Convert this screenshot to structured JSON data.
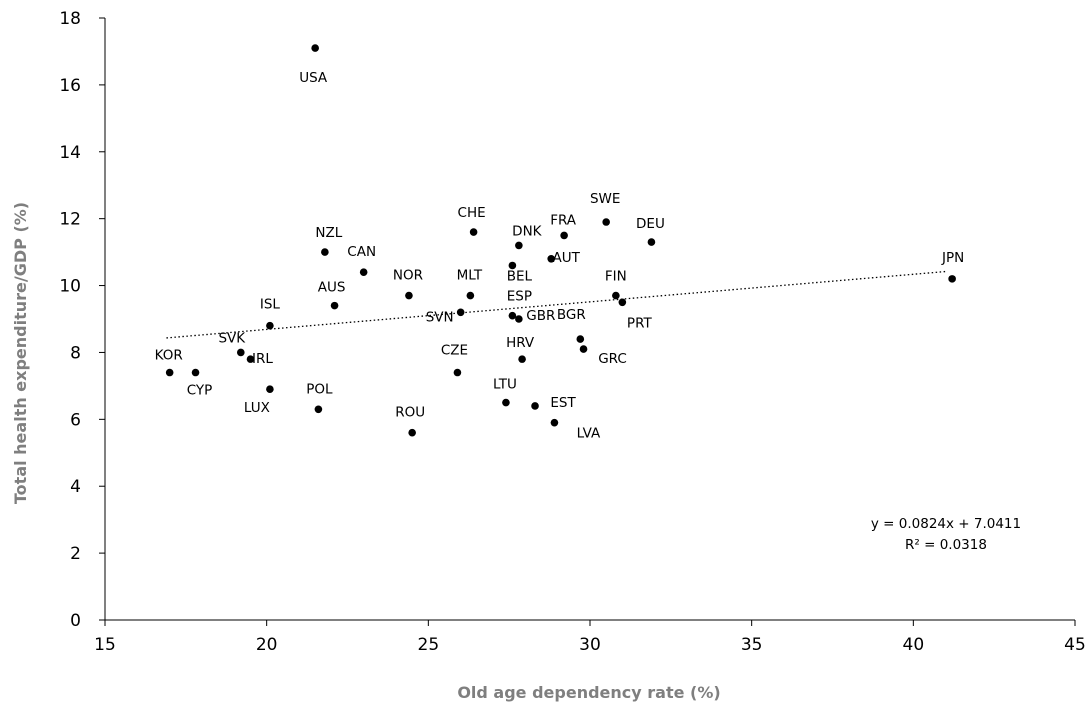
{
  "chart_data": {
    "type": "scatter",
    "xlabel": "Old age dependency rate (%)",
    "ylabel": "Total health expenditure/GDP  (%)",
    "xlim": [
      15,
      45
    ],
    "ylim": [
      0,
      18
    ],
    "xticks": [
      15,
      20,
      25,
      30,
      35,
      40,
      45
    ],
    "yticks": [
      0,
      2,
      4,
      6,
      8,
      10,
      12,
      14,
      16,
      18
    ],
    "grid": false,
    "marker_color": "#000000",
    "points": [
      {
        "label": "USA",
        "x": 21.5,
        "y": 17.1
      },
      {
        "label": "NZL",
        "x": 21.8,
        "y": 11.0
      },
      {
        "label": "CAN",
        "x": 23.0,
        "y": 10.4
      },
      {
        "label": "AUS",
        "x": 22.1,
        "y": 9.4
      },
      {
        "label": "ISL",
        "x": 20.1,
        "y": 8.8
      },
      {
        "label": "SVK",
        "x": 19.2,
        "y": 8.0
      },
      {
        "label": "IRL",
        "x": 19.5,
        "y": 7.8
      },
      {
        "label": "KOR",
        "x": 17.0,
        "y": 7.4
      },
      {
        "label": "CYP",
        "x": 17.8,
        "y": 7.4
      },
      {
        "label": "LUX",
        "x": 20.1,
        "y": 6.9
      },
      {
        "label": "POL",
        "x": 21.6,
        "y": 6.3
      },
      {
        "label": "NOR",
        "x": 24.4,
        "y": 9.7
      },
      {
        "label": "ROU",
        "x": 24.5,
        "y": 5.6
      },
      {
        "label": "CHE",
        "x": 26.4,
        "y": 11.6
      },
      {
        "label": "MLT",
        "x": 26.3,
        "y": 9.7
      },
      {
        "label": "SVN",
        "x": 26.0,
        "y": 9.2
      },
      {
        "label": "CZE",
        "x": 25.9,
        "y": 7.4
      },
      {
        "label": "DNK",
        "x": 27.8,
        "y": 11.2
      },
      {
        "label": "BEL",
        "x": 27.6,
        "y": 10.6
      },
      {
        "label": "AUT",
        "x": 28.8,
        "y": 10.8
      },
      {
        "label": "ESP",
        "x": 27.6,
        "y": 9.1
      },
      {
        "label": "GBR",
        "x": 27.8,
        "y": 9.0
      },
      {
        "label": "HRV",
        "x": 27.9,
        "y": 7.8
      },
      {
        "label": "LTU",
        "x": 27.4,
        "y": 6.5
      },
      {
        "label": "EST",
        "x": 28.3,
        "y": 6.4
      },
      {
        "label": "LVA",
        "x": 28.9,
        "y": 5.9
      },
      {
        "label": "FRA",
        "x": 29.2,
        "y": 11.5
      },
      {
        "label": "SWE",
        "x": 30.5,
        "y": 11.9
      },
      {
        "label": "DEU",
        "x": 31.9,
        "y": 11.3
      },
      {
        "label": "FIN",
        "x": 30.8,
        "y": 9.7
      },
      {
        "label": "PRT",
        "x": 31.0,
        "y": 9.5
      },
      {
        "label": "BGR",
        "x": 29.7,
        "y": 8.4
      },
      {
        "label": "GRC",
        "x": 29.8,
        "y": 8.1
      },
      {
        "label": "JPN",
        "x": 41.2,
        "y": 10.2
      }
    ],
    "trendline": {
      "type": "linear",
      "slope": 0.0824,
      "intercept": 7.0411,
      "x_range": [
        16.9,
        41.0
      ],
      "style": "dotted",
      "equation": "y = 0.0824x + 7.0411",
      "r_squared": "R² = 0.0318"
    }
  }
}
